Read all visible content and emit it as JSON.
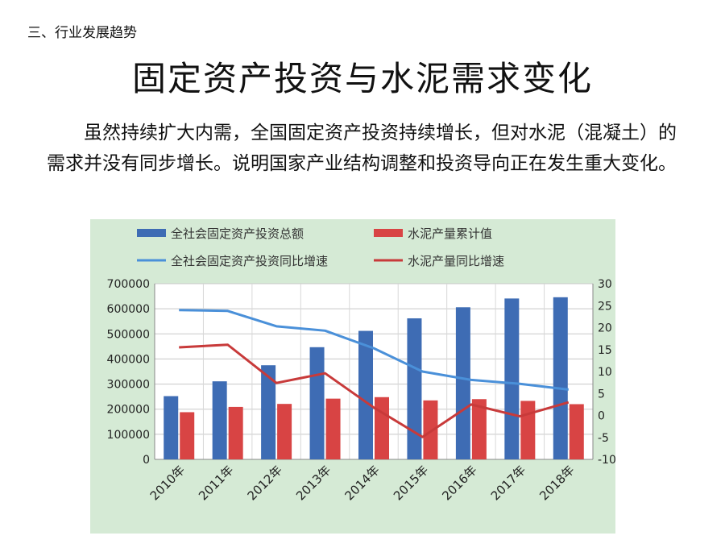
{
  "section_label": "三、行业发展趋势",
  "title": "固定资产投资与水泥需求变化",
  "paragraph": "虽然持续扩大内需，全国固定资产投资持续增长，但对水泥（混凝土）的需求并没有同步增长。说明国家产业结构调整和投资导向正在发生重大变化。",
  "colors": {
    "chart_background": "#d5ead5",
    "plot_background": "#ffffff",
    "investment_bar": "#3e6cb4",
    "cement_bar": "#d84444",
    "investment_line": "#4a90d9",
    "cement_line": "#c83a3a"
  },
  "chart_data": {
    "type": "bar",
    "title": "",
    "categories": [
      "2010年",
      "2011年",
      "2012年",
      "2013年",
      "2014年",
      "2015年",
      "2016年",
      "2017年",
      "2018年"
    ],
    "series": [
      {
        "name": "全社会固定资产投资总额",
        "type": "bar",
        "axis": "left",
        "values": [
          252000,
          311000,
          375000,
          447000,
          512000,
          562000,
          606000,
          641000,
          646000
        ]
      },
      {
        "name": "水泥产量累计值",
        "type": "bar",
        "axis": "left",
        "values": [
          188000,
          209000,
          221000,
          242000,
          248000,
          235000,
          240000,
          233000,
          220000
        ]
      },
      {
        "name": "全社会固定资产投资同比增速",
        "type": "line",
        "axis": "right",
        "values": [
          24,
          23.8,
          20.3,
          19.3,
          15.3,
          10,
          8.1,
          7.2,
          5.9
        ]
      },
      {
        "name": "水泥产量同比增速",
        "type": "line",
        "axis": "right",
        "values": [
          15.5,
          16.1,
          7.4,
          9.6,
          1.8,
          -4.9,
          2.5,
          -0.2,
          3
        ]
      }
    ],
    "y_left": {
      "min": 0,
      "max": 700000,
      "ticks": [
        0,
        100000,
        200000,
        300000,
        400000,
        500000,
        600000,
        700000
      ]
    },
    "y_right": {
      "min": -10,
      "max": 30,
      "ticks": [
        -10,
        -5,
        0,
        5,
        10,
        15,
        20,
        25,
        30
      ]
    },
    "grid": true,
    "legend_position": "top"
  }
}
